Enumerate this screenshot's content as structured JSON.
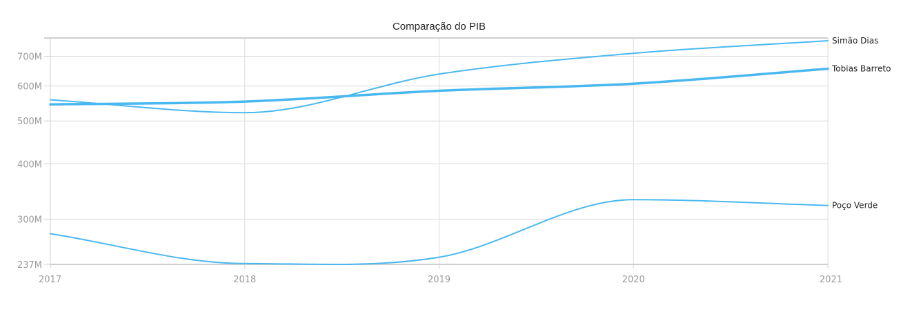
{
  "chart_data": {
    "type": "line",
    "title": "Comparação do PIB",
    "xlabel": "",
    "ylabel": "",
    "x": [
      2017,
      2018,
      2019,
      2020,
      2021
    ],
    "x_tick_labels": [
      "2017",
      "2018",
      "2019",
      "2020",
      "2021"
    ],
    "y_scale": "log",
    "ylim": [
      237000000,
      770000000
    ],
    "y_ticks": [
      237000000,
      300000000,
      400000000,
      500000000,
      600000000,
      700000000
    ],
    "y_tick_labels": [
      "237M",
      "300M",
      "400M",
      "500M",
      "600M",
      "700M"
    ],
    "grid": true,
    "legend": "none",
    "color": "#4ab8f0",
    "series": [
      {
        "name": "Simão Dias",
        "values": [
          558000000,
          522000000,
          638000000,
          711000000,
          759000000
        ]
      },
      {
        "name": "Tobias Barreto",
        "values": [
          545000000,
          553000000,
          585000000,
          607000000,
          656000000
        ]
      },
      {
        "name": "Poço Verde",
        "values": [
          278000000,
          238000000,
          246000000,
          332000000,
          322000000
        ]
      }
    ]
  }
}
